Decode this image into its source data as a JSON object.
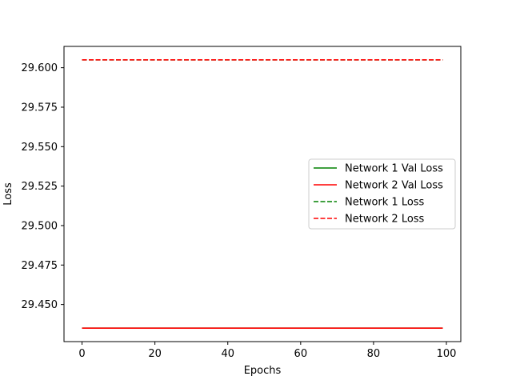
{
  "chart_data": {
    "type": "line",
    "title": "",
    "xlabel": "Epochs",
    "ylabel": "Loss",
    "xlim": [
      -4.95,
      103.95
    ],
    "ylim": [
      29.4265,
      29.6135
    ],
    "x_ticks": [
      0,
      20,
      40,
      60,
      80,
      100
    ],
    "x_tick_labels": [
      "0",
      "20",
      "40",
      "60",
      "80",
      "100"
    ],
    "y_ticks": [
      29.45,
      29.475,
      29.5,
      29.525,
      29.55,
      29.575,
      29.6
    ],
    "y_tick_labels": [
      "29.450",
      "29.475",
      "29.500",
      "29.525",
      "29.550",
      "29.575",
      "29.600"
    ],
    "x_range": [
      0,
      99
    ],
    "grid": false,
    "legend_position": "center-right",
    "series": [
      {
        "name": "Network 1 Val Loss",
        "color": "#008000",
        "style": "solid",
        "value": 29.435
      },
      {
        "name": "Network 2 Val Loss",
        "color": "#ff0000",
        "style": "solid",
        "value": 29.435
      },
      {
        "name": "Network 1 Loss",
        "color": "#008000",
        "style": "dashed",
        "value": 29.605
      },
      {
        "name": "Network 2 Loss",
        "color": "#ff0000",
        "style": "dashed",
        "value": 29.605
      }
    ]
  }
}
